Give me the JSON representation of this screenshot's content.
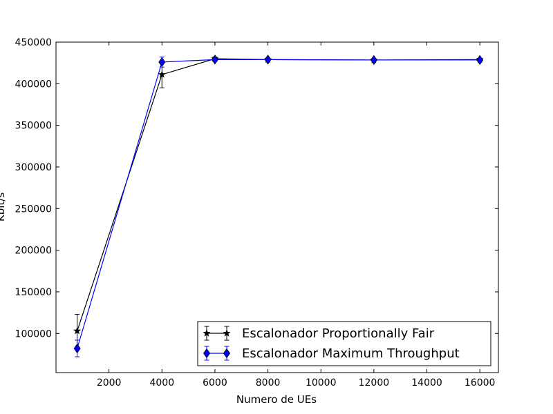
{
  "chart_data": {
    "type": "line",
    "title": "",
    "xlabel": "Numero de UEs",
    "ylabel": "Kbit/s",
    "xlim": [
      0,
      16700
    ],
    "ylim": [
      53000,
      450000
    ],
    "xticks": [
      2000,
      4000,
      6000,
      8000,
      10000,
      12000,
      14000,
      16000
    ],
    "yticks": [
      100000,
      150000,
      200000,
      250000,
      300000,
      350000,
      400000,
      450000
    ],
    "grid": false,
    "legend_position": "lower-right",
    "series": [
      {
        "name": "Escalonador Proportionally Fair",
        "color": "#000000",
        "marker": "star",
        "x": [
          800,
          4000,
          6000,
          8000,
          12000,
          16000
        ],
        "y": [
          103000,
          411000,
          430000,
          429000,
          428500,
          429000
        ],
        "err": [
          20000,
          16000,
          2000,
          2000,
          1500,
          1500
        ]
      },
      {
        "name": "Escalonador Maximum Throughput",
        "color": "#0000ff",
        "marker": "diamond",
        "x": [
          800,
          4000,
          6000,
          8000,
          12000,
          16000
        ],
        "y": [
          82000,
          426000,
          429000,
          429000,
          428500,
          428500
        ],
        "err": [
          10000,
          6000,
          2000,
          1500,
          1500,
          1500
        ]
      }
    ]
  }
}
